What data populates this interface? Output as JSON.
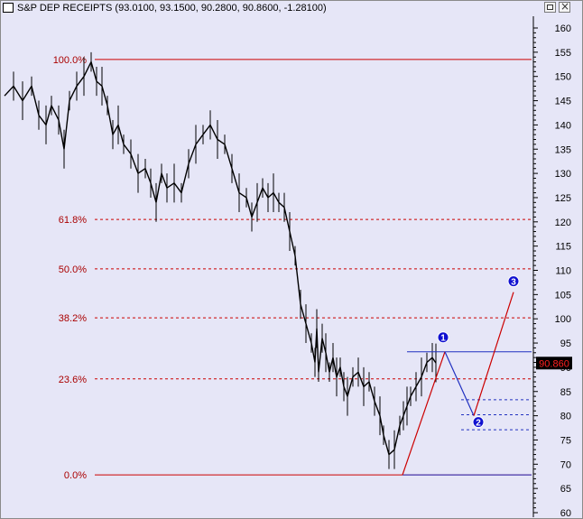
{
  "window": {
    "title": "S&P DEP RECEIPTS (93.0100, 93.1500, 90.2800, 90.8600, -1.28100)"
  },
  "chart_data": {
    "type": "line",
    "title": "S&P DEP RECEIPTS",
    "ohlc": {
      "open": 93.01,
      "high": 93.15,
      "low": 90.28,
      "close": 90.86,
      "change": -1.281
    },
    "ylim": [
      60,
      160
    ],
    "yticks": [
      160,
      155,
      150,
      145,
      140,
      135,
      130,
      125,
      120,
      115,
      110,
      105,
      100,
      95,
      90,
      85,
      80,
      75,
      70,
      65,
      60
    ],
    "last_price_label": "90.860",
    "fib_levels": [
      {
        "label": "100.0%",
        "value": 153.5
      },
      {
        "label": "61.8%",
        "value": 120.5
      },
      {
        "label": "50.0%",
        "value": 110.3
      },
      {
        "label": "38.2%",
        "value": 100.2
      },
      {
        "label": "23.6%",
        "value": 87.6
      },
      {
        "label": "0.0%",
        "value": 67.8
      }
    ],
    "wave_points": [
      {
        "label": "1",
        "x": 477,
        "y": 93.2
      },
      {
        "label": "2",
        "x": 507,
        "y": 80.0
      },
      {
        "label": "3",
        "x": 550,
        "y": 105.5
      }
    ],
    "series": [
      {
        "x": [
          0,
          10,
          20,
          30,
          38,
          46,
          52,
          60,
          66,
          72,
          80,
          88,
          96,
          102,
          108,
          114,
          120,
          126,
          132,
          140,
          148,
          156,
          162,
          168,
          174,
          180,
          188,
          196,
          204,
          212,
          220,
          228,
          236,
          244,
          252,
          260,
          268,
          274,
          280,
          286,
          292,
          298,
          304,
          310,
          316,
          322,
          328,
          334,
          340,
          344,
          346,
          348,
          352,
          356,
          360,
          364,
          368,
          372,
          376,
          380,
          386,
          392,
          398,
          404,
          410,
          416,
          420,
          426,
          432,
          438,
          442,
          446,
          450,
          456,
          462,
          468,
          474,
          478
        ],
        "y": [
          146,
          148,
          145,
          148,
          142,
          140,
          144,
          141,
          135,
          145,
          148,
          150,
          153,
          149,
          148,
          144,
          138,
          140,
          136,
          134,
          130,
          131,
          128,
          124,
          130,
          127,
          128,
          126,
          132,
          136,
          138,
          140,
          137,
          136,
          131,
          126,
          125,
          121,
          124,
          127,
          125,
          126,
          124,
          123,
          118,
          113,
          103,
          99,
          95,
          91,
          98,
          89,
          96,
          93,
          89,
          92,
          88,
          90,
          86,
          84,
          88,
          89,
          86,
          87,
          83,
          80,
          76,
          72,
          73,
          78,
          80,
          82,
          84,
          86,
          88,
          91,
          92,
          90.9
        ]
      }
    ]
  }
}
